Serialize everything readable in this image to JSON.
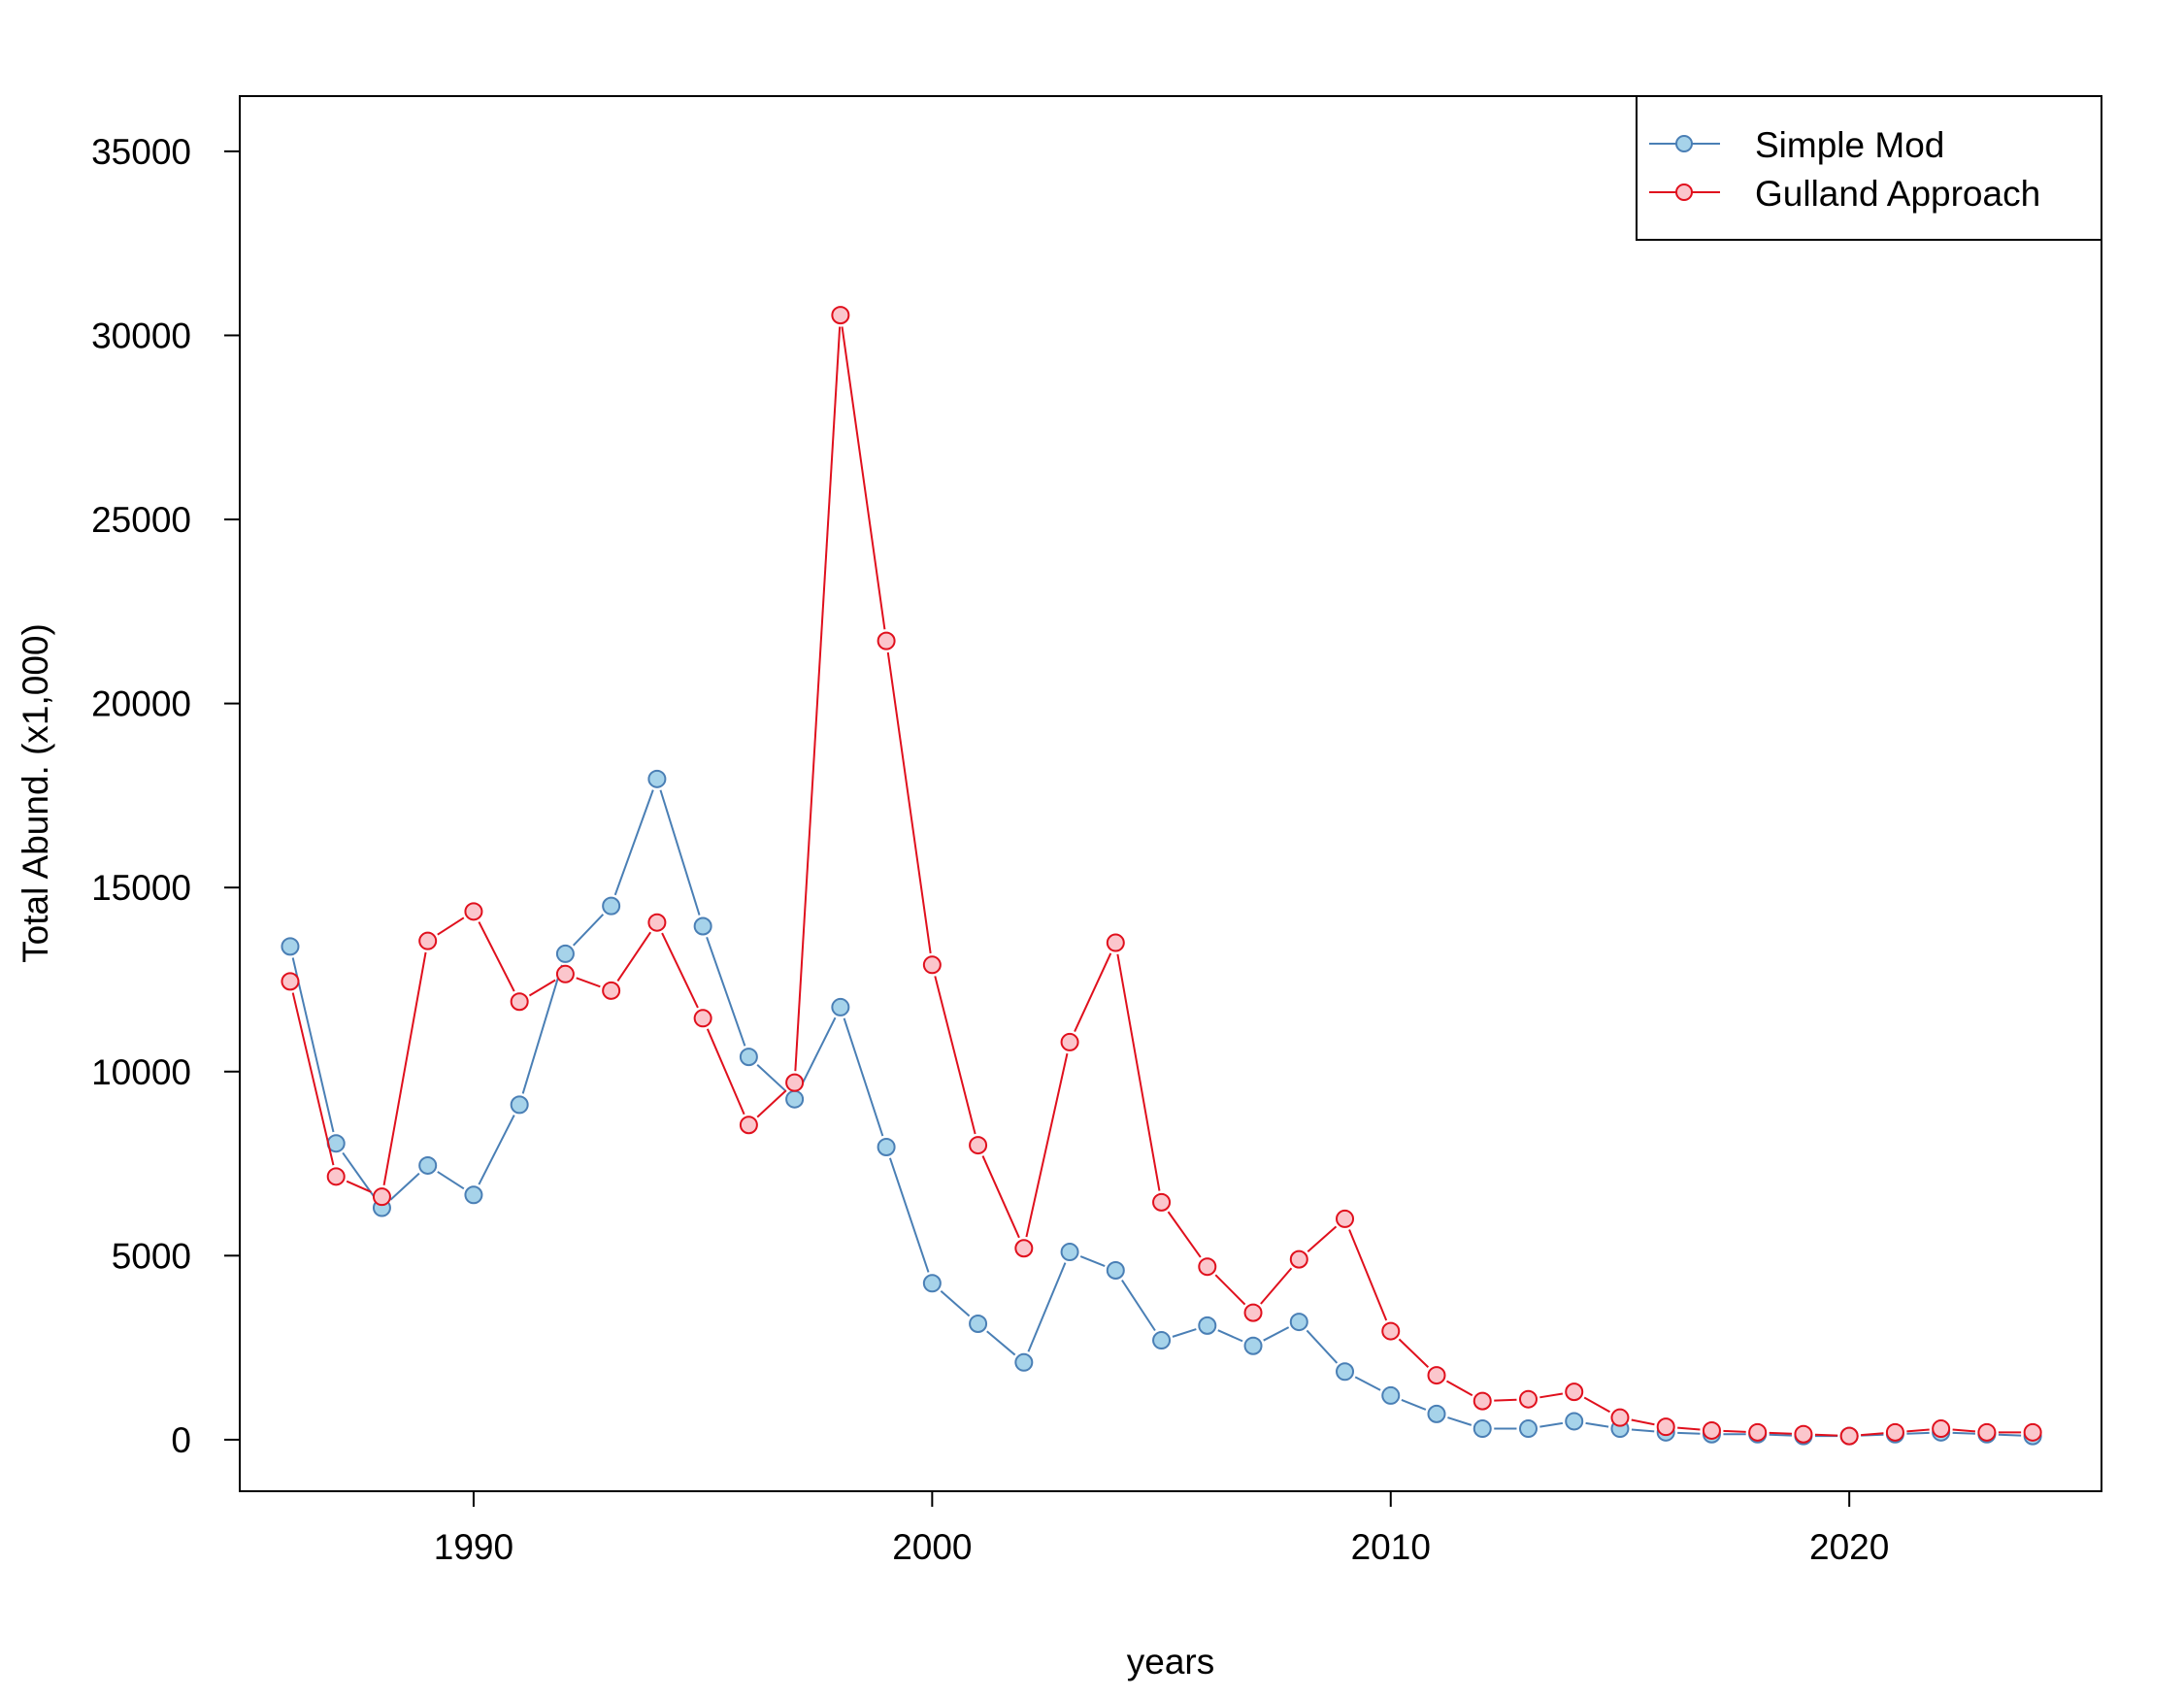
{
  "chart_data": {
    "type": "line",
    "title": "",
    "xlabel": "years",
    "ylabel": "Total Abund. (x1,000)",
    "xlim": [
      1984.9,
      2025.5
    ],
    "ylim": [
      -1400,
      36500
    ],
    "xticks": [
      1990,
      2000,
      2010,
      2020
    ],
    "yticks": [
      0,
      5000,
      10000,
      15000,
      20000,
      25000,
      30000,
      35000
    ],
    "x": [
      1986,
      1987,
      1988,
      1989,
      1990,
      1991,
      1992,
      1993,
      1994,
      1995,
      1996,
      1997,
      1998,
      1999,
      2000,
      2001,
      2002,
      2003,
      2004,
      2005,
      2006,
      2007,
      2008,
      2009,
      2010,
      2011,
      2012,
      2013,
      2014,
      2015,
      2016,
      2017,
      2018,
      2019,
      2020,
      2021,
      2022,
      2023,
      2024
    ],
    "series": [
      {
        "name": "Simple Mod",
        "color": "#4a7fb5",
        "fill": "#a6d3ea",
        "values": [
          13400,
          8050,
          6300,
          7450,
          6650,
          9100,
          13200,
          14500,
          17950,
          13950,
          10400,
          9250,
          11750,
          7950,
          4250,
          3150,
          2100,
          5100,
          4600,
          2700,
          3100,
          2550,
          3200,
          1850,
          1200,
          700,
          300,
          300,
          500,
          300,
          200,
          150,
          150,
          100,
          100,
          150,
          200,
          150,
          100
        ]
      },
      {
        "name": "Gulland Approach",
        "color": "#e0101d",
        "fill": "#fbc6cc",
        "values": [
          12450,
          7150,
          6600,
          13550,
          14350,
          11900,
          12650,
          12200,
          14050,
          11450,
          8550,
          9700,
          30550,
          21700,
          12900,
          8000,
          5200,
          10800,
          13500,
          6450,
          4700,
          3450,
          4900,
          6000,
          2950,
          1750,
          1050,
          1100,
          1300,
          600,
          350,
          250,
          200,
          150,
          100,
          200,
          300,
          200,
          200
        ]
      }
    ],
    "legend": {
      "position": "top-right",
      "entries": [
        "Simple Mod",
        "Gulland Approach"
      ]
    },
    "grid": false
  }
}
